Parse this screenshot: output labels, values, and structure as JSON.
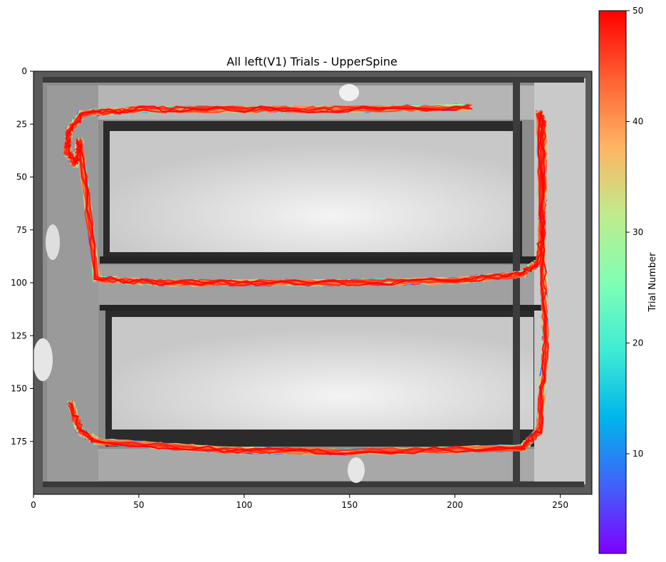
{
  "chart_data": {
    "type": "line",
    "title": "All left(V1) Trials - UpperSpine",
    "xlabel": "",
    "ylabel": "",
    "xlim": [
      0,
      265
    ],
    "ylim": [
      200,
      0
    ],
    "y_inverted": true,
    "x_ticks": [
      0,
      50,
      100,
      150,
      200,
      250
    ],
    "y_ticks": [
      0,
      25,
      50,
      75,
      100,
      125,
      150,
      175
    ],
    "x_tick_labels": [
      "0",
      "50",
      "100",
      "150",
      "200",
      "250"
    ],
    "y_tick_labels": [
      "0",
      "25",
      "50",
      "75",
      "100",
      "125",
      "150",
      "175"
    ],
    "background": "grayscale video frame of a rectangular maze with two central rectangular blocks",
    "colorbar": {
      "label": "Trial Number",
      "min": 1,
      "max": 50,
      "ticks": [
        10,
        20,
        30,
        40,
        50
      ],
      "tick_labels": [
        "10",
        "20",
        "30",
        "40",
        "50"
      ],
      "colormap": "rainbow"
    },
    "trial_count": 50,
    "mean_path": {
      "x": [
        207,
        150,
        100,
        50,
        23,
        17,
        16,
        20,
        22,
        30,
        60,
        100,
        150,
        200,
        232,
        240,
        242,
        242,
        240,
        242,
        243,
        240,
        232,
        150,
        90,
        30,
        22,
        17
      ],
      "y": [
        17,
        18,
        18,
        18,
        20,
        28,
        38,
        44,
        33,
        98,
        100,
        100,
        100,
        99,
        96,
        90,
        60,
        25,
        20,
        95,
        130,
        170,
        178,
        180,
        179,
        175,
        170,
        155
      ]
    },
    "segments": [
      {
        "name": "top corridor",
        "x": [
          207,
          17
        ],
        "y": [
          17,
          20
        ]
      },
      {
        "name": "middle corridor",
        "x": [
          240,
          20
        ],
        "y": [
          97,
          100
        ]
      },
      {
        "name": "right vertical",
        "x": [
          242,
          242
        ],
        "y": [
          18,
          172
        ]
      },
      {
        "name": "bottom corridor",
        "x": [
          240,
          17
        ],
        "y": [
          178,
          158
        ]
      }
    ]
  },
  "colors": {
    "rainbow": [
      "#8000ff",
      "#4062fa",
      "#00b5eb",
      "#40ecd4",
      "#80ffb4",
      "#c0eb8d",
      "#ffb462",
      "#ff6032",
      "#ff0000"
    ],
    "axis": "#000000"
  }
}
